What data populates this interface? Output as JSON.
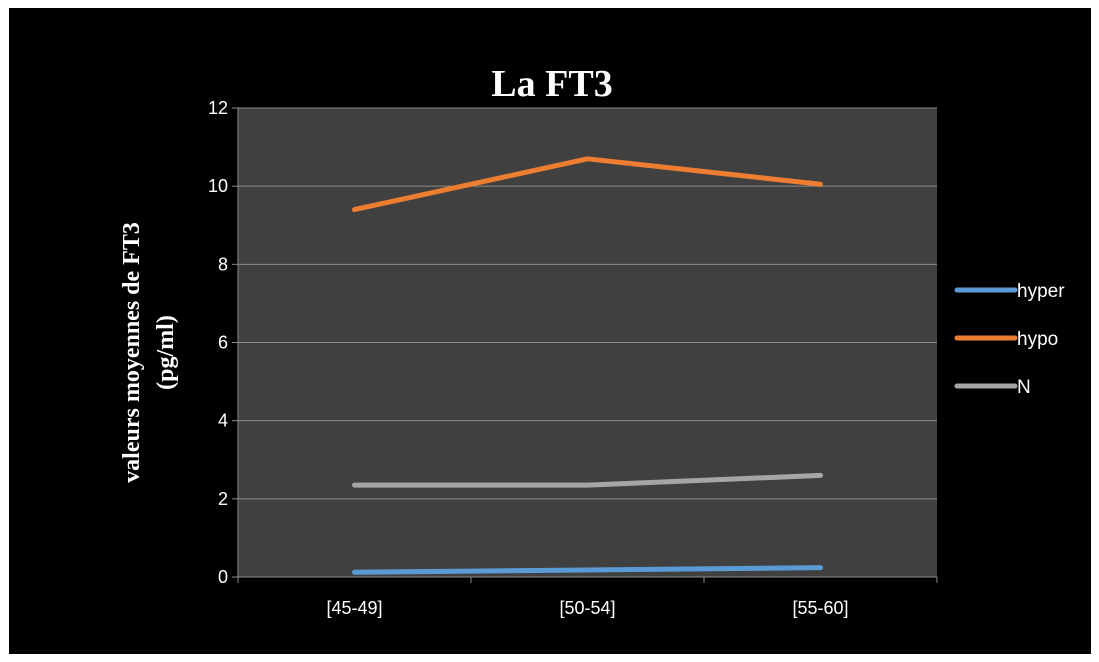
{
  "chart_data": {
    "type": "line",
    "title": "La FT3",
    "xlabel": "",
    "ylabel": "valeurs moyennes de FT3 (pg/ml)",
    "ylabel_lines": [
      "valeurs moyennes de FT3",
      "(pg/ml)"
    ],
    "categories": [
      "[45-49]",
      "[50-54]",
      "[55-60]"
    ],
    "ylim": [
      0,
      12
    ],
    "yticks": [
      0,
      2,
      4,
      6,
      8,
      10,
      12
    ],
    "ytick_labels": [
      "0",
      "2",
      "4",
      "6",
      "8",
      "10",
      "12"
    ],
    "grid": true,
    "legend_position": "right",
    "series": [
      {
        "name": "hyper",
        "values": [
          0.12,
          0.18,
          0.24
        ],
        "color": "#5b9bd5"
      },
      {
        "name": "hypo",
        "values": [
          9.4,
          10.7,
          10.05
        ],
        "color": "#ed7d31"
      },
      {
        "name": "N",
        "values": [
          2.35,
          2.35,
          2.6
        ],
        "color": "#a5a5a5"
      }
    ],
    "colors": {
      "background": "#000000",
      "plot_area": "#404040",
      "gridline": "#8c8c8c",
      "text": "#ffffff"
    }
  }
}
